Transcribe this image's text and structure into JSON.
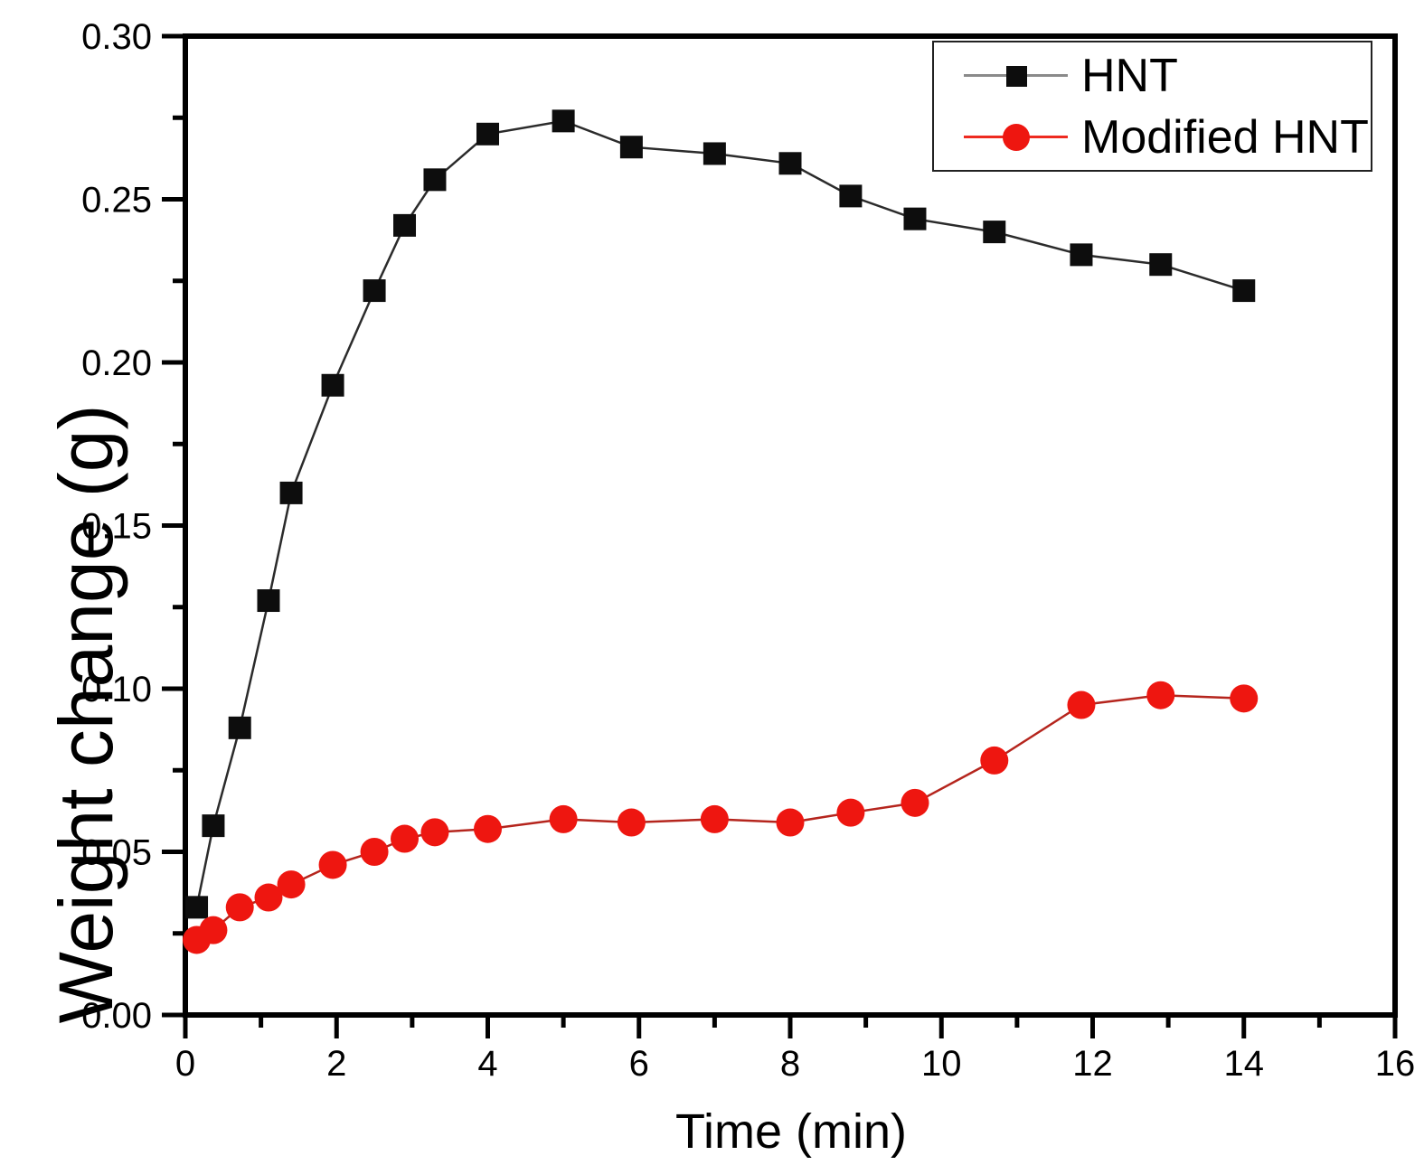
{
  "figure": {
    "background": "#ffffff"
  },
  "chart_data": {
    "type": "line",
    "title": "",
    "xlabel": "Time (min)",
    "ylabel": "Weight change (g)",
    "xlim": [
      0,
      16
    ],
    "ylim": [
      0.0,
      0.3
    ],
    "grid": false,
    "legend_position": "top-right",
    "x_major_ticks": [
      0,
      2,
      4,
      6,
      8,
      10,
      12,
      14,
      16
    ],
    "x_tick_labels": [
      "0",
      "2",
      "4",
      "6",
      "8",
      "10",
      "12",
      "14",
      "16"
    ],
    "x_minor_ticks": [
      1,
      3,
      5,
      7,
      9,
      11,
      13,
      15
    ],
    "y_major_ticks": [
      0.0,
      0.05,
      0.1,
      0.15,
      0.2,
      0.25,
      0.3
    ],
    "y_tick_labels": [
      "0.00",
      "0.05",
      "0.10",
      "0.15",
      "0.20",
      "0.25",
      "0.30"
    ],
    "y_minor_ticks": [
      0.025,
      0.075,
      0.125,
      0.175,
      0.225,
      0.275
    ],
    "x": [
      0.15,
      0.37,
      0.72,
      1.1,
      1.4,
      1.95,
      2.5,
      2.9,
      3.3,
      4.0,
      5.0,
      5.9,
      7.0,
      8.0,
      8.8,
      9.65,
      10.7,
      11.85,
      12.9,
      14.0
    ],
    "series": [
      {
        "name": "HNT",
        "marker": "square",
        "marker_color": "#0d0d0d",
        "line_color": "#2b2b2b",
        "legend_line_color": "#8a8a8a",
        "values": [
          0.033,
          0.058,
          0.088,
          0.127,
          0.16,
          0.193,
          0.222,
          0.242,
          0.256,
          0.27,
          0.274,
          0.266,
          0.264,
          0.261,
          0.251,
          0.244,
          0.24,
          0.233,
          0.23,
          0.222
        ]
      },
      {
        "name": "Modified HNT",
        "marker": "circle",
        "marker_color": "#ee1610",
        "line_color": "#b5251d",
        "legend_line_color": "#ee2a20",
        "values": [
          0.023,
          0.026,
          0.033,
          0.036,
          0.04,
          0.046,
          0.05,
          0.054,
          0.056,
          0.057,
          0.06,
          0.059,
          0.06,
          0.059,
          0.062,
          0.065,
          0.078,
          0.095,
          0.098,
          0.097
        ]
      }
    ]
  }
}
